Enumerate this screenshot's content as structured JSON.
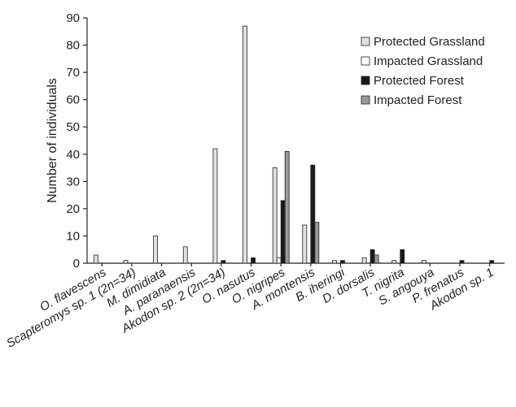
{
  "chart_data": {
    "type": "bar",
    "title": "",
    "xlabel": "",
    "ylabel": "Number of individuals",
    "ylim": [
      0,
      90
    ],
    "yticks": [
      0,
      10,
      20,
      30,
      40,
      50,
      60,
      70,
      80,
      90
    ],
    "grid": false,
    "legend_position": "top-right",
    "categories": [
      "O. flavescens",
      "Scapteromys sp. 1 (2n=34)",
      "M. dimidiata",
      "A. paranaensis",
      "Akodon sp. 2 (2n=34)",
      "O. nasutus",
      "O. nigripes",
      "A. montensis",
      "B. iheringi",
      "D. dorsalis",
      "T. nigrita",
      "S. angouya",
      "P. frenatus",
      "Akodon sp. 1"
    ],
    "series": [
      {
        "name": "Protected Grassland",
        "color": "#e0e0e0",
        "values": [
          3,
          1,
          10,
          6,
          42,
          87,
          35,
          14,
          1,
          2,
          1,
          1,
          0,
          0
        ]
      },
      {
        "name": "Impacted Grassland",
        "color": "#ffffff",
        "values": [
          0,
          0,
          0,
          0,
          0,
          0,
          2,
          0,
          0,
          0,
          0,
          0,
          0,
          0
        ]
      },
      {
        "name": "Protected Forest",
        "color": "#1a1a1a",
        "values": [
          0,
          0,
          0,
          0,
          1,
          2,
          23,
          36,
          1,
          5,
          5,
          0,
          1,
          1
        ]
      },
      {
        "name": "Impacted Forest",
        "color": "#999999",
        "values": [
          0,
          0,
          0,
          0,
          0,
          0,
          41,
          15,
          0,
          3,
          0,
          0,
          0,
          0
        ]
      }
    ]
  }
}
